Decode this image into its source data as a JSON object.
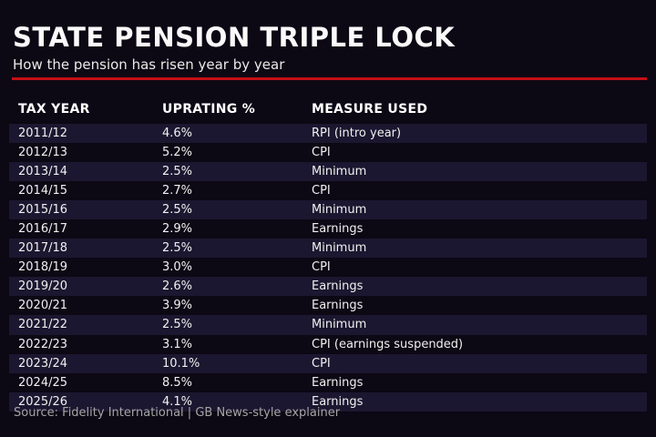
{
  "theme": {
    "bg": "#0c0814",
    "band": "#1c1730",
    "accent": "#c41016",
    "title": "#fafafa",
    "text": "#f0f0f0",
    "muted": "#a5a5a5"
  },
  "chart_data": {
    "type": "table",
    "title": "STATE PENSION TRIPLE LOCK",
    "subtitle": "How the pension has risen year by year",
    "columns": [
      "TAX YEAR",
      "UPRATING %",
      "MEASURE USED"
    ],
    "rows": [
      {
        "tax_year": "2011/12",
        "uprating": "4.6%",
        "measure": "RPI (intro year)"
      },
      {
        "tax_year": "2012/13",
        "uprating": "5.2%",
        "measure": "CPI"
      },
      {
        "tax_year": "2013/14",
        "uprating": "2.5%",
        "measure": "Minimum"
      },
      {
        "tax_year": "2014/15",
        "uprating": "2.7%",
        "measure": "CPI"
      },
      {
        "tax_year": "2015/16",
        "uprating": "2.5%",
        "measure": "Minimum"
      },
      {
        "tax_year": "2016/17",
        "uprating": "2.9%",
        "measure": "Earnings"
      },
      {
        "tax_year": "2017/18",
        "uprating": "2.5%",
        "measure": "Minimum"
      },
      {
        "tax_year": "2018/19",
        "uprating": "3.0%",
        "measure": "CPI"
      },
      {
        "tax_year": "2019/20",
        "uprating": "2.6%",
        "measure": "Earnings"
      },
      {
        "tax_year": "2020/21",
        "uprating": "3.9%",
        "measure": "Earnings"
      },
      {
        "tax_year": "2021/22",
        "uprating": "2.5%",
        "measure": "Minimum"
      },
      {
        "tax_year": "2022/23",
        "uprating": "3.1%",
        "measure": "CPI (earnings suspended)"
      },
      {
        "tax_year": "2023/24",
        "uprating": "10.1%",
        "measure": "CPI"
      },
      {
        "tax_year": "2024/25",
        "uprating": "8.5%",
        "measure": "Earnings"
      },
      {
        "tax_year": "2025/26",
        "uprating": "4.1%",
        "measure": "Earnings"
      }
    ],
    "uprating_values_pct": [
      4.6,
      5.2,
      2.5,
      2.7,
      2.5,
      2.9,
      2.5,
      3.0,
      2.6,
      3.9,
      2.5,
      3.1,
      10.1,
      8.5,
      4.1
    ],
    "source": "Source: Fidelity International | GB News-style explainer",
    "layout": {
      "striped": true,
      "striped_rows": "1st, 3rd, 5th... data rows highlighted",
      "legend": "none",
      "grid": "off"
    }
  }
}
